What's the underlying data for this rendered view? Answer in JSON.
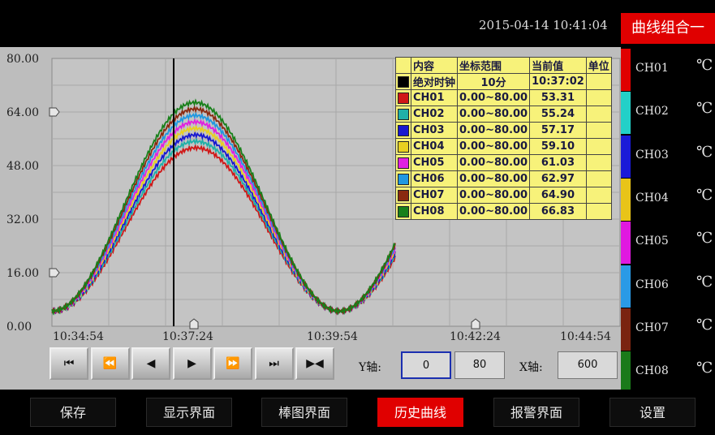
{
  "header": {
    "datetime": "2015-04-14 10:41:04",
    "group_button": "曲线组合一"
  },
  "chart_data": {
    "type": "line",
    "ylim": [
      0,
      80
    ],
    "yticks": [
      "80.00",
      "64.00",
      "48.00",
      "32.00",
      "16.00",
      "0.00"
    ],
    "xticks": [
      "10:34:54",
      "10:37:24",
      "10:39:54",
      "10:42:24",
      "10:44:54"
    ],
    "series": [
      {
        "name": "CH01",
        "color": "#d01818",
        "peak": 53.31,
        "shift": 2
      },
      {
        "name": "CH02",
        "color": "#20b0a8",
        "peak": 55.24,
        "shift": 1.7
      },
      {
        "name": "CH03",
        "color": "#1818d0",
        "peak": 57.17,
        "shift": 1.4
      },
      {
        "name": "CH04",
        "color": "#e8d020",
        "peak": 59.1,
        "shift": 1.1
      },
      {
        "name": "CH05",
        "color": "#e020e0",
        "peak": 61.03,
        "shift": 0.8
      },
      {
        "name": "CH06",
        "color": "#2098e0",
        "peak": 62.97,
        "shift": 0.5
      },
      {
        "name": "CH07",
        "color": "#8a2a10",
        "peak": 64.9,
        "shift": 0.2
      },
      {
        "name": "CH08",
        "color": "#18801a",
        "peak": 66.83,
        "shift": 0
      }
    ]
  },
  "table": {
    "headers": [
      "内容",
      "坐标范围",
      "当前值",
      "单位"
    ],
    "rows": [
      {
        "color": "#000000",
        "name": "绝对时钟",
        "range": "10分",
        "value": "10:37:02",
        "unit": ""
      },
      {
        "color": "#d01818",
        "name": "CH01",
        "range": "0.00~80.00",
        "value": "53.31",
        "unit": ""
      },
      {
        "color": "#20b0a8",
        "name": "CH02",
        "range": "0.00~80.00",
        "value": "55.24",
        "unit": ""
      },
      {
        "color": "#1818d0",
        "name": "CH03",
        "range": "0.00~80.00",
        "value": "57.17",
        "unit": ""
      },
      {
        "color": "#e8d020",
        "name": "CH04",
        "range": "0.00~80.00",
        "value": "59.10",
        "unit": ""
      },
      {
        "color": "#e020e0",
        "name": "CH05",
        "range": "0.00~80.00",
        "value": "61.03",
        "unit": ""
      },
      {
        "color": "#2098e0",
        "name": "CH06",
        "range": "0.00~80.00",
        "value": "62.97",
        "unit": ""
      },
      {
        "color": "#8a2a10",
        "name": "CH07",
        "range": "0.00~80.00",
        "value": "64.90",
        "unit": ""
      },
      {
        "color": "#18801a",
        "name": "CH08",
        "range": "0.00~80.00",
        "value": "66.83",
        "unit": ""
      }
    ]
  },
  "channels": [
    {
      "name": "CH01",
      "unit": "℃",
      "color": "#e00000"
    },
    {
      "name": "CH02",
      "unit": "℃",
      "color": "#22d0c8"
    },
    {
      "name": "CH03",
      "unit": "℃",
      "color": "#1a1ad8"
    },
    {
      "name": "CH04",
      "unit": "℃",
      "color": "#e8c418"
    },
    {
      "name": "CH05",
      "unit": "℃",
      "color": "#e018e0"
    },
    {
      "name": "CH06",
      "unit": "℃",
      "color": "#2a9ae6"
    },
    {
      "name": "CH07",
      "unit": "℃",
      "color": "#7a2410"
    },
    {
      "name": "CH08",
      "unit": "℃",
      "color": "#1a7a1a"
    }
  ],
  "controls": {
    "buttons": [
      {
        "name": "first-page-button",
        "icon": "⏮"
      },
      {
        "name": "fast-backward-button",
        "icon": "⏪"
      },
      {
        "name": "step-backward-button",
        "icon": "◀"
      },
      {
        "name": "step-forward-button",
        "icon": "▶"
      },
      {
        "name": "fast-forward-button",
        "icon": "⏩"
      },
      {
        "name": "last-page-button",
        "icon": "⏭"
      },
      {
        "name": "latest-button",
        "icon": "▶◀"
      }
    ],
    "y_axis_label": "Y轴:",
    "y_min": "0",
    "y_max": "80",
    "x_axis_label": "X轴:",
    "x_span": "600"
  },
  "nav": {
    "buttons": [
      "保存",
      "显示界面",
      "棒图界面",
      "历史曲线",
      "报警界面",
      "设置"
    ],
    "active_index": 3
  }
}
